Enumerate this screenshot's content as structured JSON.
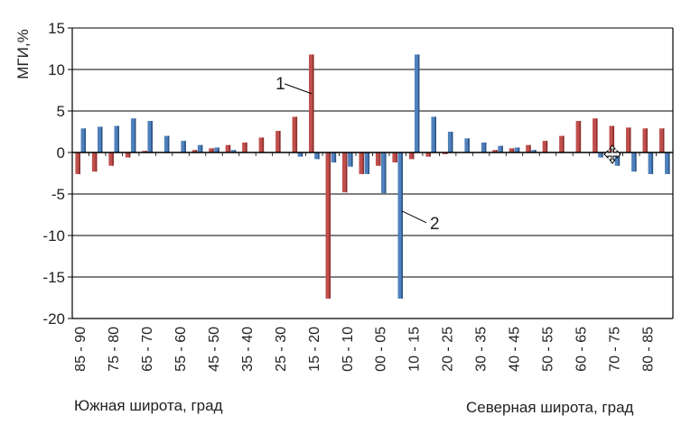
{
  "chart_data": {
    "type": "bar",
    "ylabel": "МГИ,%",
    "ylim": [
      -20,
      15
    ],
    "yticks": [
      15,
      10,
      5,
      0,
      -5,
      -10,
      -15,
      -20
    ],
    "grid": true,
    "categories": [
      "85 - 90",
      "80 - 85",
      "75 - 80",
      "70 - 75",
      "65 - 70",
      "60 - 65",
      "55 - 60",
      "50 - 55",
      "45 - 50",
      "40 - 45",
      "35 - 40",
      "30 - 35",
      "25 - 30",
      "20 - 25",
      "15 - 20",
      "10 - 15",
      "05 - 10",
      "00 - 05",
      "00 - 05",
      "05 - 10",
      "10 - 15",
      "15 - 20",
      "20 - 25",
      "25 - 30",
      "30 - 35",
      "35 - 40",
      "40 - 45",
      "45 - 50",
      "50 - 55",
      "55 - 60",
      "60 - 65",
      "65 - 70",
      "70 - 75",
      "75 - 80",
      "80 - 85",
      "85 - 90"
    ],
    "tick_labels": [
      "85 - 90",
      "75 - 80",
      "65 - 70",
      "55 - 60",
      "45 - 50",
      "35 - 40",
      "25 - 30",
      "15 - 20",
      "05 - 10",
      "00 - 05",
      "10 - 15",
      "20 - 25",
      "30 - 35",
      "40 - 45",
      "50 - 55",
      "60 - 65",
      "70 - 75",
      "80 - 85"
    ],
    "series": [
      {
        "name": "1",
        "color": "#c0504d",
        "values": [
          -2.6,
          -2.3,
          -1.6,
          -0.6,
          0.2,
          0.0,
          0.0,
          0.3,
          0.5,
          0.9,
          1.2,
          1.8,
          2.6,
          4.3,
          11.8,
          -17.6,
          -4.8,
          -2.6,
          -1.6,
          -1.2,
          -0.8,
          -0.5,
          -0.2,
          0.0,
          0.0,
          0.3,
          0.5,
          0.9,
          1.4,
          2.0,
          3.8,
          4.1,
          3.2,
          3.0,
          2.9,
          2.9
        ]
      },
      {
        "name": "2",
        "color": "#4f81bd",
        "values": [
          2.9,
          3.1,
          3.2,
          4.1,
          3.8,
          2.0,
          1.4,
          0.9,
          0.6,
          0.3,
          0.0,
          0.0,
          0.0,
          -0.5,
          -0.8,
          -1.2,
          -1.7,
          -2.6,
          -4.9,
          -17.6,
          11.8,
          4.3,
          2.5,
          1.7,
          1.2,
          0.8,
          0.6,
          0.3,
          0.0,
          0.0,
          0.0,
          -0.6,
          -1.6,
          -2.3,
          -2.6,
          -2.6
        ]
      }
    ],
    "annotations": [
      {
        "text": "1",
        "series": "1",
        "category_index": 14
      },
      {
        "text": "2",
        "series": "2",
        "category_index": 19
      }
    ],
    "xlabel_left": "Южная широта, град",
    "xlabel_right": "Северная широта, град"
  }
}
